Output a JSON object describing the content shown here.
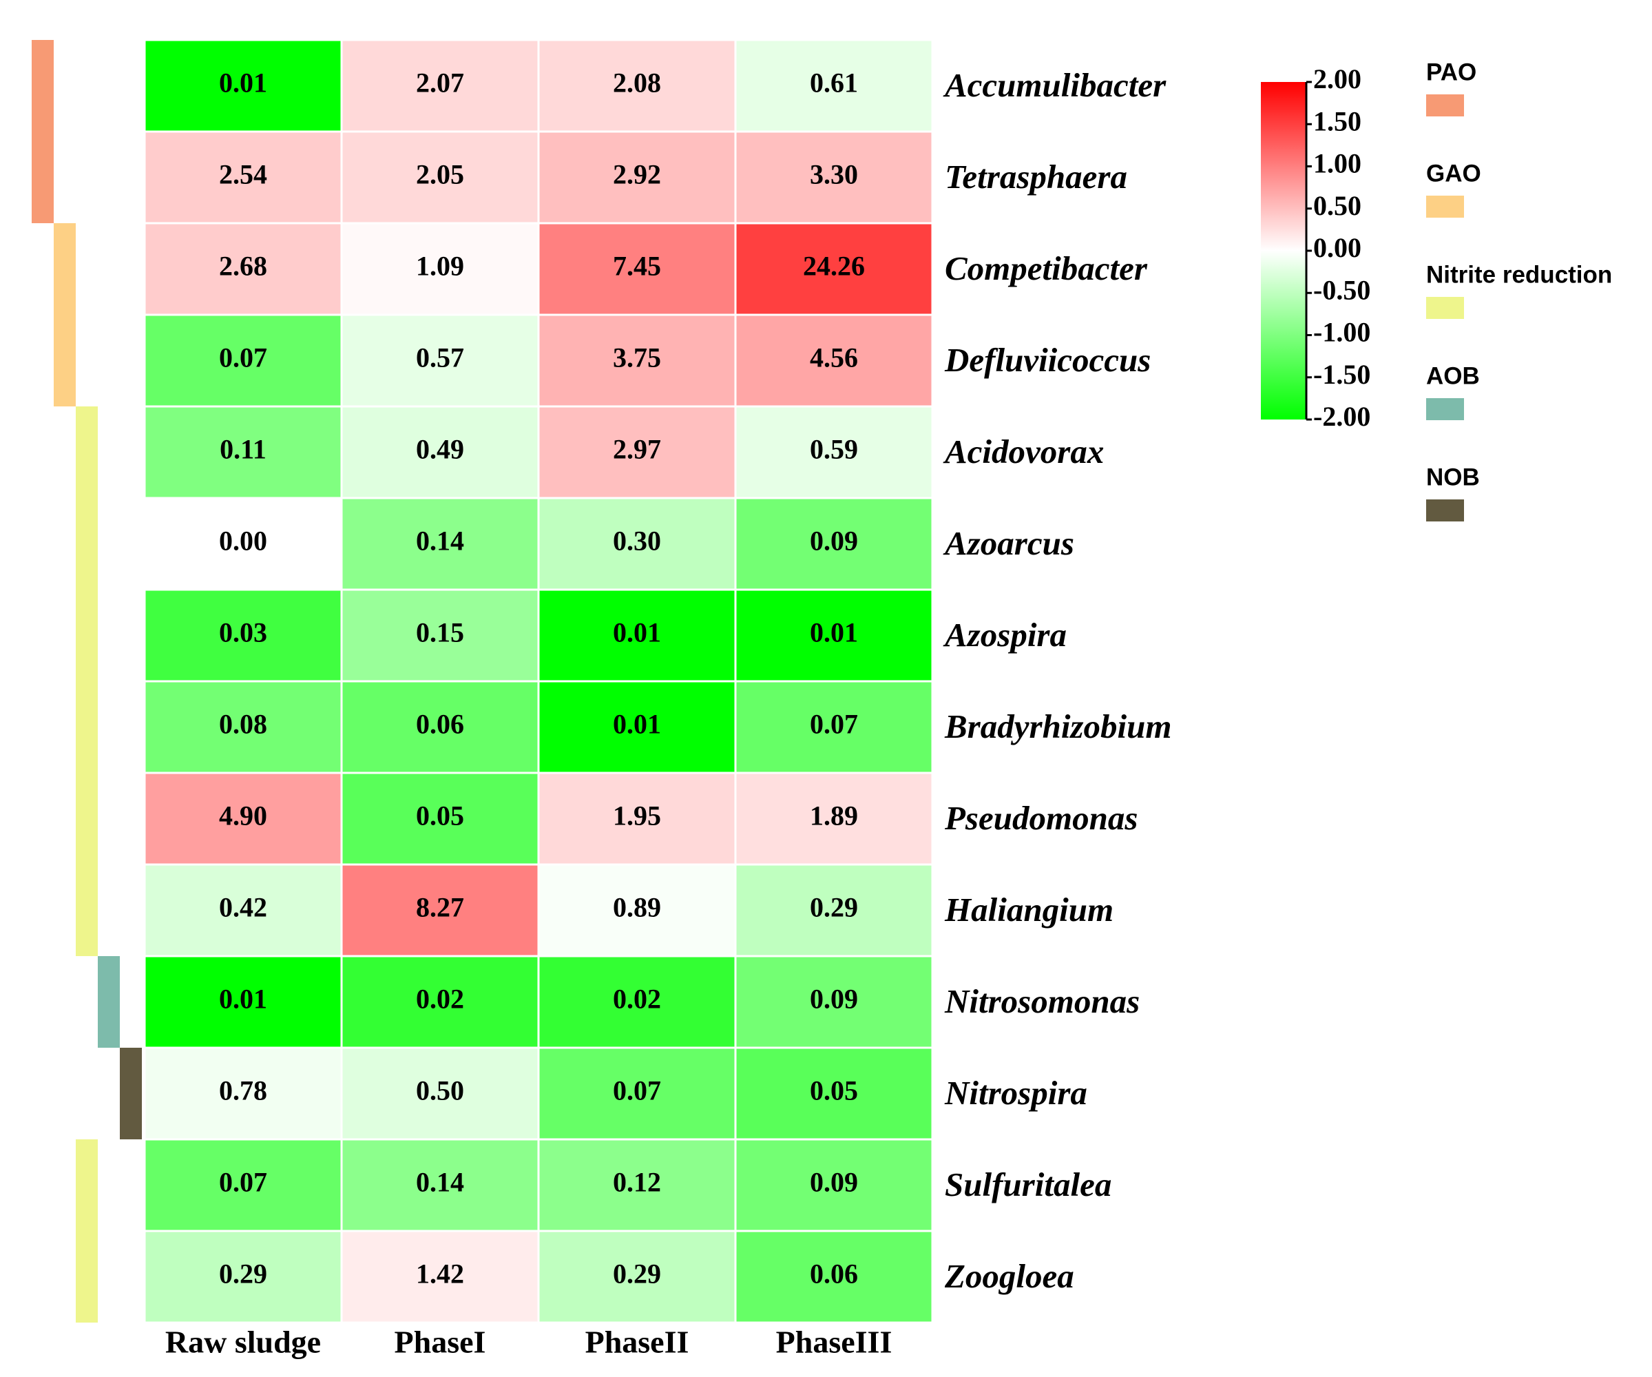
{
  "chart_data": {
    "type": "heatmap",
    "columns": [
      "Raw sludge",
      "PhaseI",
      "PhaseII",
      "PhaseIII"
    ],
    "rows": [
      "Accumulibacter",
      "Tetrasphaera",
      "Competibacter",
      "Defluviicoccus",
      "Acidovorax",
      "Azoarcus",
      "Azospira",
      "Bradyrhizobium",
      "Pseudomonas",
      "Haliangium",
      "Nitrosomonas",
      "Nitrospira",
      "Sulfuritalea",
      "Zoogloea"
    ],
    "values": [
      [
        0.01,
        2.07,
        2.08,
        0.61
      ],
      [
        2.54,
        2.05,
        2.92,
        3.3
      ],
      [
        2.68,
        1.09,
        7.45,
        24.26
      ],
      [
        0.07,
        0.57,
        3.75,
        4.56
      ],
      [
        0.11,
        0.49,
        2.97,
        0.59
      ],
      [
        0,
        0.14,
        0.3,
        0.09
      ],
      [
        0.03,
        0.15,
        0.01,
        0.01
      ],
      [
        0.08,
        0.06,
        0.01,
        0.07
      ],
      [
        4.9,
        0.05,
        1.95,
        1.89
      ],
      [
        0.42,
        8.27,
        0.89,
        0.29
      ],
      [
        0.01,
        0.02,
        0.02,
        0.09
      ],
      [
        0.78,
        0.5,
        0.07,
        0.05
      ],
      [
        0.07,
        0.14,
        0.12,
        0.09
      ],
      [
        0.29,
        1.42,
        0.29,
        0.06
      ]
    ],
    "value_labels": [
      [
        "0.01",
        "2.07",
        "2.08",
        "0.61"
      ],
      [
        "2.54",
        "2.05",
        "2.92",
        "3.30"
      ],
      [
        "2.68",
        "1.09",
        "7.45",
        "24.26"
      ],
      [
        "0.07",
        "0.57",
        "3.75",
        "4.56"
      ],
      [
        "0.11",
        "0.49",
        "2.97",
        "0.59"
      ],
      [
        "0.00",
        "0.14",
        "0.30",
        "0.09"
      ],
      [
        "0.03",
        "0.15",
        "0.01",
        "0.01"
      ],
      [
        "0.08",
        "0.06",
        "0.01",
        "0.07"
      ],
      [
        "4.90",
        "0.05",
        "1.95",
        "1.89"
      ],
      [
        "0.42",
        "8.27",
        "0.89",
        "0.29"
      ],
      [
        "0.01",
        "0.02",
        "0.02",
        "0.09"
      ],
      [
        "0.78",
        "0.50",
        "0.07",
        "0.05"
      ],
      [
        "0.07",
        "0.14",
        "0.12",
        "0.09"
      ],
      [
        "0.29",
        "1.42",
        "0.29",
        "0.06"
      ]
    ],
    "z": [
      [
        -2,
        0.3,
        0.3,
        -0.2
      ],
      [
        0.4,
        0.3,
        0.5,
        0.5
      ],
      [
        0.4,
        0.05,
        1.0,
        1.5
      ],
      [
        -1.2,
        -0.2,
        0.6,
        0.7
      ],
      [
        -1.0,
        -0.25,
        0.5,
        -0.2
      ],
      [
        0,
        -0.9,
        -0.5,
        -1.1
      ],
      [
        -1.5,
        -0.8,
        -2,
        -2
      ],
      [
        -1.1,
        -1.2,
        -2,
        -1.2
      ],
      [
        0.75,
        -1.3,
        0.3,
        0.25
      ],
      [
        -0.3,
        1.0,
        -0.05,
        -0.5
      ],
      [
        -2,
        -1.6,
        -1.6,
        -1.1
      ],
      [
        -0.1,
        -0.25,
        -1.2,
        -1.3
      ],
      [
        -1.2,
        -0.9,
        -0.9,
        -1.1
      ],
      [
        -0.5,
        0.15,
        -0.5,
        -1.2
      ]
    ],
    "colormap": [
      "#00ff00",
      "#ffffff",
      "#ff0000"
    ],
    "zlim": [
      -2,
      2
    ],
    "zticks": [
      {
        "value": 2,
        "label": "2.00"
      },
      {
        "value": 1.5,
        "label": "1.50"
      },
      {
        "value": 1,
        "label": "1.00"
      },
      {
        "value": 0.5,
        "label": "0.50"
      },
      {
        "value": 0,
        "label": "0.00"
      },
      {
        "value": -0.5,
        "label": "-0.50"
      },
      {
        "value": -1,
        "label": "-1.00"
      },
      {
        "value": -1.5,
        "label": "-1.50"
      },
      {
        "value": -2,
        "label": "-2.00"
      }
    ],
    "groups": [
      {
        "name": "PAO",
        "color": "#f79a74",
        "members": [
          "Accumulibacter",
          "Tetrasphaera"
        ]
      },
      {
        "name": "GAO",
        "color": "#fdd085",
        "members": [
          "Competibacter",
          "Defluviicoccus"
        ]
      },
      {
        "name": "Nitrite reduction",
        "color": "#eef58c",
        "members": [
          "Acidovorax",
          "Azoarcus",
          "Azospira",
          "Bradyrhizobium",
          "Pseudomonas",
          "Haliangium",
          "Sulfuritalea",
          "Zoogloea"
        ]
      },
      {
        "name": "AOB",
        "color": "#7dbbab",
        "members": [
          "Nitrosomonas"
        ]
      },
      {
        "name": "NOB",
        "color": "#625a40",
        "members": [
          "Nitrospira"
        ]
      }
    ]
  }
}
